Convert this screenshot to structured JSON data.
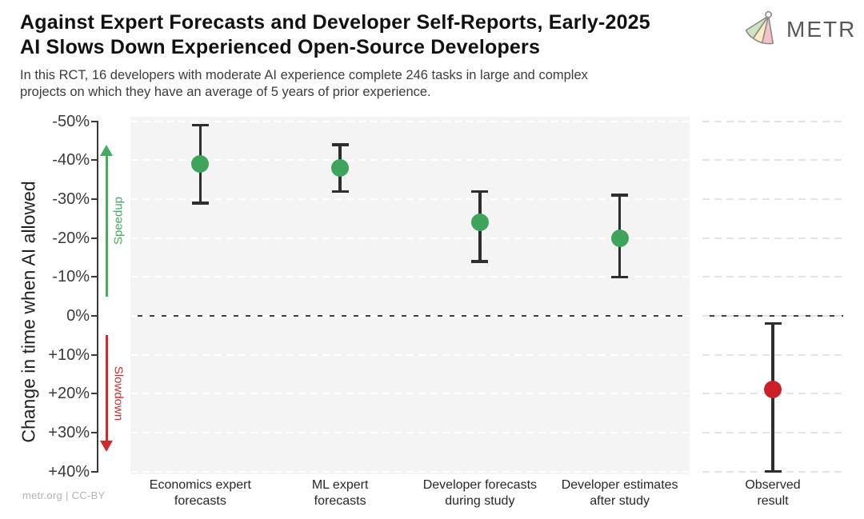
{
  "header": {
    "title_line1": "Against Expert Forecasts and Developer Self-Reports, Early-2025",
    "title_line2": "AI Slows Down Experienced Open-Source Developers",
    "subtitle_line1": "In this RCT, 16 developers with moderate AI experience complete 246 tasks in large and complex",
    "subtitle_line2": "projects on which they have an average of 5 years of prior experience.",
    "logo_text": "METR"
  },
  "footer": {
    "credit": "metr.org  |  CC-BY"
  },
  "colors": {
    "forecast_green": "#3EA45B",
    "observed_red": "#CB2027",
    "speedup_label": "#44AB5F",
    "slowdown_label": "#D02A2E",
    "error_bar": "#2e2e2e"
  },
  "chart_data": {
    "type": "scatter",
    "title": "Forecasted vs observed change in completion time when AI is allowed",
    "ylabel": "Change in time when AI allowed",
    "xlabel": "",
    "ylim": [
      -51,
      41
    ],
    "y_axis_inverted": true,
    "grid": true,
    "legend": "none",
    "yticks": [
      {
        "label": "-50%",
        "value": -50
      },
      {
        "label": "-40%",
        "value": -40
      },
      {
        "label": "-30%",
        "value": -30
      },
      {
        "label": "-20%",
        "value": -20
      },
      {
        "label": "-10%",
        "value": -10
      },
      {
        "label": "0%",
        "value": 0
      },
      {
        "label": "+10%",
        "value": 10
      },
      {
        "label": "+20%",
        "value": 20
      },
      {
        "label": "+30%",
        "value": 30
      },
      {
        "label": "+40%",
        "value": 40
      }
    ],
    "annotations": [
      {
        "id": "speedup",
        "label": "Speedup",
        "color": "#44AB5F",
        "from_value": -5,
        "to_value": -44
      },
      {
        "id": "slowdown",
        "label": "Slowdown",
        "color": "#D02A2E",
        "from_value": 5,
        "to_value": 35
      }
    ],
    "points": [
      {
        "panel": "main",
        "category": "Economics expert\nforecasts",
        "value": -39,
        "ci_low": -49,
        "ci_high": -29,
        "color": "#3EA45B"
      },
      {
        "panel": "main",
        "category": "ML expert\nforecasts",
        "value": -38,
        "ci_low": -44,
        "ci_high": -32,
        "color": "#3EA45B"
      },
      {
        "panel": "main",
        "category": "Developer forecasts\nduring study",
        "value": -24,
        "ci_low": -32,
        "ci_high": -14,
        "color": "#3EA45B"
      },
      {
        "panel": "main",
        "category": "Developer estimates\nafter study",
        "value": -20,
        "ci_low": -31,
        "ci_high": -10,
        "color": "#3EA45B"
      },
      {
        "panel": "right",
        "category": "Observed\nresult",
        "value": 19,
        "ci_low": 2,
        "ci_high": 40,
        "color": "#CB2027"
      }
    ]
  }
}
